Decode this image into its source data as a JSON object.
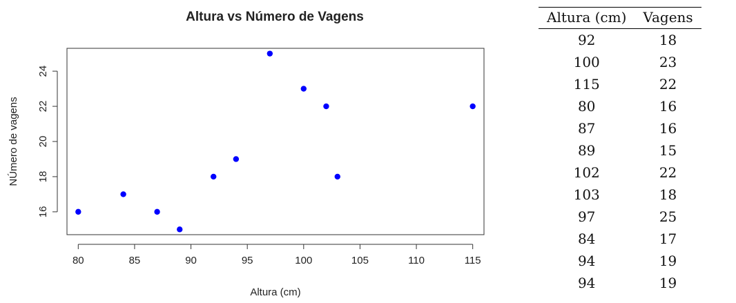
{
  "chart_data": {
    "type": "scatter",
    "title": "Altura vs Número de Vagens",
    "xlabel": "Altura (cm)",
    "ylabel": "NÚmero de vagens",
    "xlim": [
      79,
      116
    ],
    "ylim": [
      14.7,
      25.3
    ],
    "xticks": [
      80,
      85,
      90,
      95,
      100,
      105,
      110,
      115
    ],
    "yticks": [
      16,
      18,
      20,
      22,
      24
    ],
    "color": "#0000ff",
    "grid": false,
    "points": [
      {
        "x": 80,
        "y": 16
      },
      {
        "x": 84,
        "y": 17
      },
      {
        "x": 87,
        "y": 16
      },
      {
        "x": 89,
        "y": 15
      },
      {
        "x": 92,
        "y": 18
      },
      {
        "x": 94,
        "y": 19
      },
      {
        "x": 97,
        "y": 25
      },
      {
        "x": 100,
        "y": 23
      },
      {
        "x": 102,
        "y": 22
      },
      {
        "x": 103,
        "y": 18
      },
      {
        "x": 115,
        "y": 22
      }
    ]
  },
  "table": {
    "headers": [
      "Altura (cm)",
      "Vagens"
    ],
    "rows": [
      [
        "92",
        "18"
      ],
      [
        "100",
        "23"
      ],
      [
        "115",
        "22"
      ],
      [
        "80",
        "16"
      ],
      [
        "87",
        "16"
      ],
      [
        "89",
        "15"
      ],
      [
        "102",
        "22"
      ],
      [
        "103",
        "18"
      ],
      [
        "97",
        "25"
      ],
      [
        "84",
        "17"
      ],
      [
        "94",
        "19"
      ],
      [
        "94",
        "19"
      ]
    ]
  }
}
